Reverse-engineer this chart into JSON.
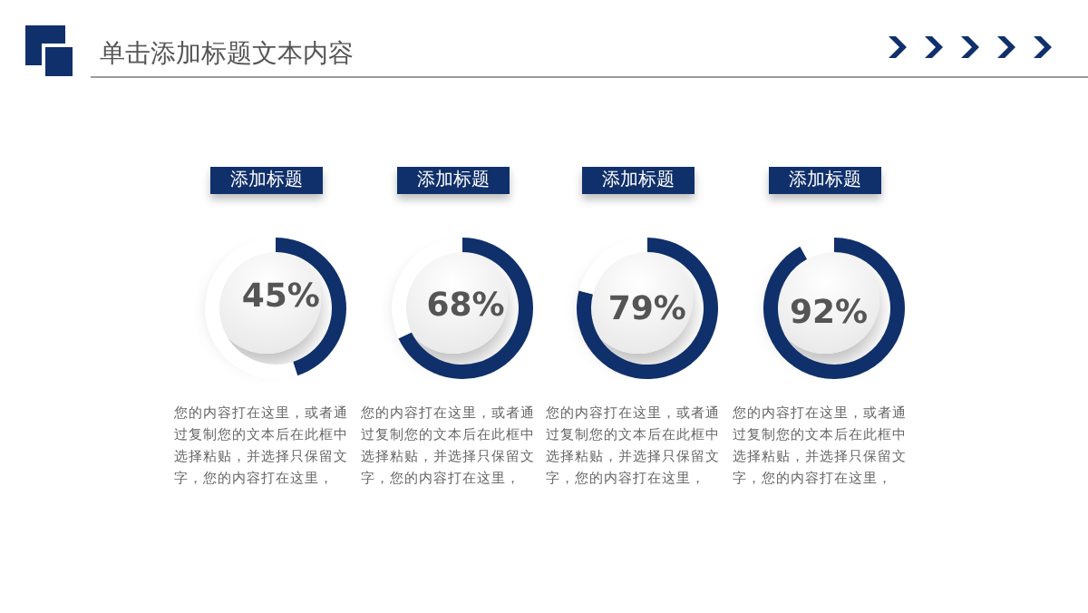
{
  "chart_data": [
    {
      "type": "other",
      "title": "单击添加标题文本内容"
    },
    {
      "type": "donut",
      "title": "添加标题",
      "categories": [
        null,
        null
      ],
      "values": [
        45,
        55
      ],
      "colors": [
        "#10306b",
        "#ffffff"
      ],
      "value_labels": [
        "45%",
        null
      ],
      "annotations": [
        "您的内容打在这里，或者通过复制您的文本后在此框中选择粘贴，并选择只保留文字，您的内容打在这里，"
      ]
    },
    {
      "type": "donut",
      "title": "添加标题",
      "categories": [
        null,
        null
      ],
      "values": [
        68,
        32
      ],
      "colors": [
        "#10306b",
        "#ffffff"
      ],
      "value_labels": [
        "68%",
        null
      ],
      "annotations": [
        "您的内容打在这里，或者通过复制您的文本后在此框中选择粘贴，并选择只保留文字，您的内容打在这里，"
      ]
    },
    {
      "type": "donut",
      "title": "添加标题",
      "categories": [
        null,
        null
      ],
      "values": [
        79,
        21
      ],
      "colors": [
        "#10306b",
        "#ffffff"
      ],
      "value_labels": [
        "79%",
        null
      ],
      "annotations": [
        "您的内容打在这里，或者通过复制您的文本后在此框中选择粘贴，并选择只保留文字，您的内容打在这里，"
      ]
    },
    {
      "type": "donut",
      "title": "添加标题",
      "categories": [
        null,
        null
      ],
      "values": [
        92,
        8
      ],
      "colors": [
        "#10306b",
        "#ffffff"
      ],
      "value_labels": [
        "92%",
        null
      ],
      "annotations": [
        "您的内容打在这里，或者通过复制您的文本后在此框中选择粘贴，并选择只保留文字，您的内容打在这里，"
      ]
    }
  ]
}
